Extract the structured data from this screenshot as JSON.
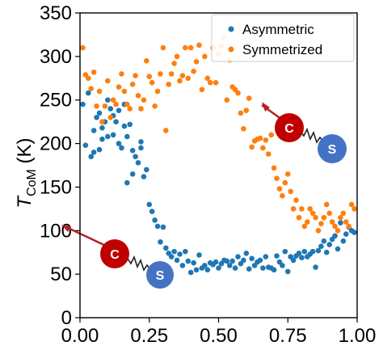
{
  "chart_data": {
    "type": "scatter",
    "ylabel_main": "T",
    "ylabel_sub": "CoM",
    "ylabel_unit": " (K)",
    "xlabel": "",
    "xlim": [
      0,
      1
    ],
    "ylim": [
      0,
      350
    ],
    "xticks": [
      "0.00",
      "0.25",
      "0.50",
      "0.75",
      "1.00"
    ],
    "xtick_values": [
      0,
      0.25,
      0.5,
      0.75,
      1.0
    ],
    "yticks": [
      "0",
      "50",
      "100",
      "150",
      "200",
      "250",
      "300",
      "350"
    ],
    "ytick_values": [
      0,
      50,
      100,
      150,
      200,
      250,
      300,
      350
    ],
    "grid": false,
    "legend_position": "top-right",
    "series": [
      {
        "name": "Asymmetric",
        "color": "#1f77b4",
        "x": [
          0.01,
          0.02,
          0.03,
          0.04,
          0.05,
          0.05,
          0.06,
          0.07,
          0.07,
          0.08,
          0.08,
          0.09,
          0.1,
          0.1,
          0.11,
          0.12,
          0.12,
          0.13,
          0.14,
          0.14,
          0.15,
          0.16,
          0.16,
          0.17,
          0.17,
          0.18,
          0.19,
          0.19,
          0.2,
          0.21,
          0.22,
          0.22,
          0.23,
          0.24,
          0.25,
          0.26,
          0.27,
          0.28,
          0.29,
          0.3,
          0.31,
          0.32,
          0.33,
          0.34,
          0.35,
          0.36,
          0.37,
          0.38,
          0.39,
          0.4,
          0.41,
          0.42,
          0.43,
          0.44,
          0.45,
          0.46,
          0.47,
          0.48,
          0.49,
          0.5,
          0.51,
          0.52,
          0.53,
          0.54,
          0.55,
          0.56,
          0.57,
          0.58,
          0.59,
          0.6,
          0.61,
          0.62,
          0.63,
          0.64,
          0.65,
          0.66,
          0.67,
          0.68,
          0.69,
          0.7,
          0.71,
          0.72,
          0.73,
          0.74,
          0.75,
          0.76,
          0.77,
          0.78,
          0.79,
          0.8,
          0.81,
          0.82,
          0.83,
          0.84,
          0.85,
          0.86,
          0.87,
          0.88,
          0.89,
          0.9,
          0.91,
          0.92,
          0.93,
          0.94,
          0.95,
          0.96,
          0.97,
          0.98,
          0.99
        ],
        "y": [
          245,
          198,
          258,
          185,
          190,
          215,
          230,
          235,
          193,
          218,
          205,
          225,
          208,
          250,
          240,
          232,
          210,
          225,
          238,
          200,
          195,
          220,
          245,
          155,
          208,
          222,
          165,
          192,
          185,
          178,
          202,
          195,
          162,
          170,
          130,
          122,
          112,
          105,
          87,
          104,
          80,
          74,
          70,
          76,
          66,
          73,
          60,
          76,
          65,
          52,
          63,
          55,
          72,
          57,
          60,
          55,
          63,
          61,
          64,
          57,
          62,
          66,
          65,
          60,
          65,
          57,
          70,
          62,
          66,
          74,
          56,
          68,
          60,
          64,
          66,
          57,
          70,
          58,
          57,
          55,
          71,
          64,
          60,
          76,
          53,
          70,
          66,
          71,
          74,
          69,
          76,
          70,
          73,
          76,
          58,
          77,
          82,
          88,
          75,
          84,
          90,
          94,
          79,
          109,
          88,
          96,
          104,
          100,
          98
        ]
      },
      {
        "name": "Symmetrized",
        "color": "#ff7f0e",
        "x": [
          0.01,
          0.02,
          0.03,
          0.04,
          0.05,
          0.06,
          0.07,
          0.08,
          0.09,
          0.1,
          0.11,
          0.12,
          0.13,
          0.14,
          0.15,
          0.16,
          0.17,
          0.18,
          0.19,
          0.2,
          0.21,
          0.22,
          0.23,
          0.24,
          0.25,
          0.26,
          0.27,
          0.28,
          0.29,
          0.3,
          0.31,
          0.32,
          0.33,
          0.34,
          0.35,
          0.36,
          0.37,
          0.38,
          0.39,
          0.4,
          0.41,
          0.42,
          0.43,
          0.44,
          0.45,
          0.46,
          0.47,
          0.48,
          0.49,
          0.5,
          0.51,
          0.52,
          0.53,
          0.54,
          0.55,
          0.56,
          0.57,
          0.58,
          0.59,
          0.6,
          0.61,
          0.62,
          0.63,
          0.64,
          0.65,
          0.66,
          0.67,
          0.68,
          0.69,
          0.7,
          0.71,
          0.72,
          0.73,
          0.74,
          0.75,
          0.76,
          0.77,
          0.78,
          0.79,
          0.8,
          0.81,
          0.82,
          0.83,
          0.84,
          0.85,
          0.86,
          0.87,
          0.88,
          0.89,
          0.9,
          0.91,
          0.92,
          0.93,
          0.94,
          0.95,
          0.96,
          0.97,
          0.98,
          0.99
        ],
        "y": [
          310,
          279,
          275,
          263,
          282,
          243,
          260,
          225,
          243,
          272,
          230,
          250,
          245,
          265,
          280,
          260,
          245,
          240,
          268,
          278,
          255,
          240,
          250,
          295,
          277,
          270,
          243,
          260,
          280,
          310,
          215,
          268,
          280,
          292,
          300,
          272,
          278,
          310,
          275,
          310,
          283,
          294,
          313,
          262,
          300,
          275,
          270,
          310,
          270,
          303,
          312,
          322,
          250,
          296,
          265,
          262,
          258,
          235,
          217,
          238,
          252,
          196,
          203,
          205,
          206,
          195,
          204,
          188,
          210,
          172,
          160,
          148,
          140,
          155,
          165,
          145,
          125,
          135,
          115,
          125,
          105,
          110,
          125,
          120,
          115,
          100,
          108,
          115,
          130,
          120,
          110,
          105,
          100,
          115,
          120,
          110,
          105,
          130,
          125
        ]
      }
    ]
  }
}
